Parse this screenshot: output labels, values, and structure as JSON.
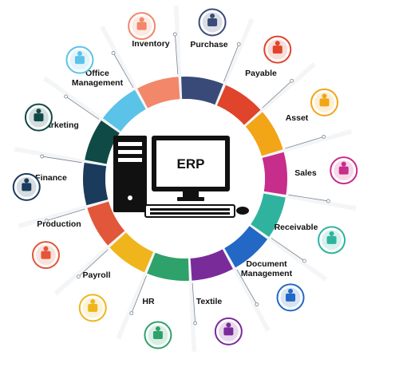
{
  "center": {
    "label": "ERP"
  },
  "modules": [
    {
      "label": "Inventory",
      "color": "#3a4a78",
      "icon": "inventory-icon"
    },
    {
      "label": "Purchase",
      "color": "#e0442a",
      "icon": "shopping-cart-icon"
    },
    {
      "label": "Payable",
      "color": "#f2a516",
      "icon": "handshake-money-icon"
    },
    {
      "label": "Asset",
      "color": "#c72d8a",
      "icon": "asset-chart-icon"
    },
    {
      "label": "Sales",
      "color": "#2fb39e",
      "icon": "sales-hand-icon"
    },
    {
      "label": "Receivable",
      "color": "#2368c4",
      "icon": "receivable-city-icon"
    },
    {
      "label": "Document Management",
      "color": "#7a2b9a",
      "icon": "document-folder-icon"
    },
    {
      "label": "Textile",
      "color": "#2ea26a",
      "icon": "shirt-icon"
    },
    {
      "label": "HR",
      "color": "#f0b51c",
      "icon": "team-icon"
    },
    {
      "label": "Payroll",
      "color": "#e2563a",
      "icon": "payroll-person-icon"
    },
    {
      "label": "Production",
      "color": "#1a3b5c",
      "icon": "factory-icon"
    },
    {
      "label": "Finance",
      "color": "#0f4a46",
      "icon": "finance-growth-icon"
    },
    {
      "label": "Marketing",
      "color": "#5bc3e8",
      "icon": "marketing-presentation-icon"
    },
    {
      "label": "Office Management",
      "color": "#f2876a",
      "icon": "office-team-icon"
    }
  ]
}
